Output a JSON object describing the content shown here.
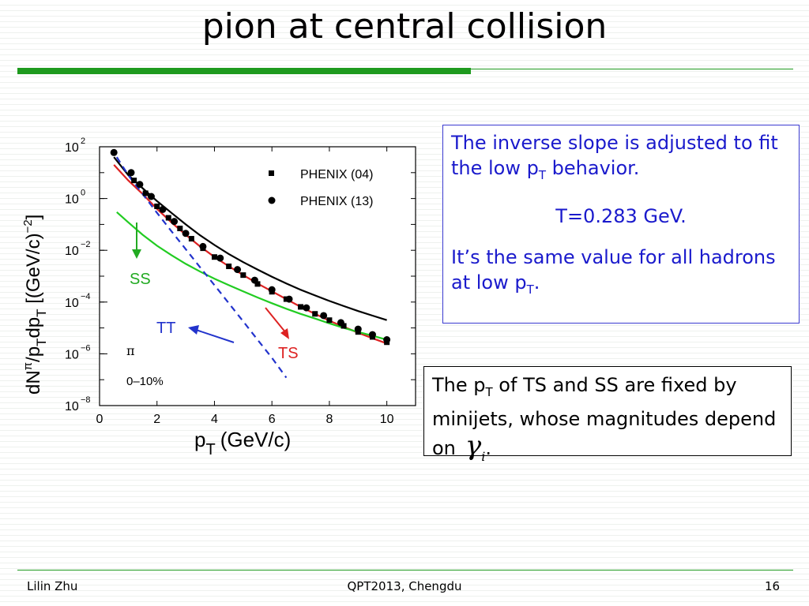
{
  "slide": {
    "title": "pion at central collision",
    "box1": {
      "line1": "The inverse slope is adjusted to fit the low p",
      "line1_sub": "T",
      "line1_tail": " behavior.",
      "line2": "T=0.283 GeV.",
      "line3": "It’s the same value for all hadrons at low p",
      "line3_sub": "T",
      "line3_tail": "."
    },
    "box2": {
      "pre": "The p",
      "pre_sub": "T",
      "text": " of TS and SS are fixed by minijets, whose magnitudes depend on",
      "gamma": "γ",
      "gamma_sub": "i",
      "tail": "."
    },
    "footer": {
      "left": "Lilin Zhu",
      "center": "QPT2013, Chengdu",
      "right": "16"
    },
    "colors": {
      "accent": "#1e9a1e",
      "box_blue": "#1a1acc"
    }
  },
  "chart_data": {
    "type": "line",
    "xlabel": "p",
    "xlabel_sub": "T",
    "xlabel_unit": "(GeV/c)",
    "ylabel": "dN",
    "ylabel_sup": "π",
    "ylabel_mid": "/p",
    "ylabel_sub": "T",
    "ylabel_mid2": "dp",
    "ylabel_sub2": "T",
    "ylabel_unit": "[(GeV/c)",
    "ylabel_unit_sup": "−2",
    "ylabel_close": "]",
    "xlim": [
      0,
      11
    ],
    "ylog": true,
    "ylim_exp": [
      -8,
      2
    ],
    "x_ticks": [
      0,
      2,
      4,
      6,
      8,
      10
    ],
    "x_tick_labels": [
      "0",
      "2",
      "4",
      "6",
      "8",
      "10"
    ],
    "y_tick_exps": [
      -8,
      -6,
      -4,
      -2,
      0,
      2
    ],
    "y_tick_labels": [
      "−8",
      "−6",
      "−4",
      "−2",
      "0",
      "2"
    ],
    "y_tick_base": "10",
    "annotation_particle": "π",
    "annotation_centrality": "0–10%",
    "legend": [
      {
        "label": "PHENIX (04)",
        "marker": "square"
      },
      {
        "label": "PHENIX (13)",
        "marker": "circle"
      }
    ],
    "series": [
      {
        "name": "PHENIX (04)",
        "kind": "square",
        "color": "#000000",
        "x": [
          1.2,
          1.6,
          2.0,
          2.4,
          2.8,
          3.2,
          3.6,
          4.0,
          4.5,
          5.0,
          5.5,
          6.0,
          6.5,
          7.0,
          7.5,
          8.0,
          8.5,
          9.0,
          9.5,
          10.0
        ],
        "y": [
          5.0,
          1.6,
          0.5,
          0.18,
          0.07,
          0.028,
          0.012,
          0.0055,
          0.0024,
          0.0011,
          0.0005,
          0.00025,
          0.00013,
          6.5e-05,
          3.5e-05,
          2e-05,
          1.2e-05,
          7e-06,
          4.5e-06,
          2.8e-06
        ]
      },
      {
        "name": "PHENIX (13)",
        "kind": "circle",
        "color": "#000000",
        "x": [
          0.5,
          1.1,
          1.4,
          1.8,
          2.2,
          2.6,
          3.0,
          3.6,
          4.2,
          4.8,
          5.4,
          6.0,
          6.6,
          7.2,
          7.8,
          8.4,
          9.0,
          9.5,
          10.0
        ],
        "y": [
          60,
          10,
          3.5,
          1.2,
          0.38,
          0.13,
          0.045,
          0.014,
          0.005,
          0.0018,
          0.0007,
          0.0003,
          0.00013,
          6e-05,
          3e-05,
          1.6e-05,
          9e-06,
          5.5e-06,
          3.5e-06
        ]
      }
    ],
    "curves": [
      {
        "id": "total",
        "color": "#000000",
        "dash": false,
        "x": [
          0.5,
          1,
          1.5,
          2,
          2.5,
          3,
          3.5,
          4,
          4.5,
          5,
          5.5,
          6,
          6.5,
          7,
          7.5,
          8,
          8.5,
          9,
          9.5,
          10
        ],
        "y": [
          40,
          8,
          2.5,
          0.8,
          0.28,
          0.1,
          0.038,
          0.016,
          0.0072,
          0.0035,
          0.0018,
          0.00095,
          0.00052,
          0.0003,
          0.00018,
          0.00011,
          7e-05,
          4.5e-05,
          3e-05,
          2e-05
        ]
      },
      {
        "id": "red",
        "color": "#dd2222",
        "dash": false,
        "x": [
          0.5,
          1,
          1.5,
          2,
          2.5,
          3,
          3.5,
          4,
          4.5,
          5,
          5.5,
          6,
          6.5,
          7,
          7.5,
          8,
          8.5,
          9,
          9.5,
          10
        ],
        "y": [
          20,
          5,
          1.5,
          0.4,
          0.12,
          0.04,
          0.014,
          0.0055,
          0.0024,
          0.0011,
          0.00052,
          0.00026,
          0.00013,
          6.5e-05,
          3.5e-05,
          1.9e-05,
          1.1e-05,
          6.5e-06,
          4e-06,
          2.5e-06
        ]
      },
      {
        "id": "SS",
        "color": "#22cc22",
        "dash": false,
        "x": [
          0.6,
          1,
          1.5,
          2,
          2.5,
          3,
          3.5,
          4,
          4.5,
          5,
          5.5,
          6,
          6.5,
          7,
          7.5,
          8,
          8.5,
          9,
          9.5,
          10
        ],
        "y": [
          0.3,
          0.12,
          0.04,
          0.015,
          0.0065,
          0.003,
          0.0015,
          0.0008,
          0.00045,
          0.00026,
          0.00015,
          9e-05,
          5.5e-05,
          3.5e-05,
          2.3e-05,
          1.5e-05,
          1e-05,
          7e-06,
          5e-06,
          3.5e-06
        ]
      },
      {
        "id": "TT",
        "color": "#2233cc",
        "dash": true,
        "x": [
          0.6,
          1,
          1.5,
          2,
          2.5,
          3,
          3.5,
          4,
          4.5,
          5,
          5.5,
          6,
          6.5
        ],
        "y": [
          40,
          8,
          1.5,
          0.28,
          0.055,
          0.011,
          0.0022,
          0.00045,
          9e-05,
          1.8e-05,
          3.5e-06,
          7e-07,
          1.2e-07
        ]
      }
    ],
    "labels": [
      {
        "text": "SS",
        "color": "#22aa22"
      },
      {
        "text": "TT",
        "color": "#2233cc"
      },
      {
        "text": "TS",
        "color": "#dd2222"
      }
    ]
  }
}
